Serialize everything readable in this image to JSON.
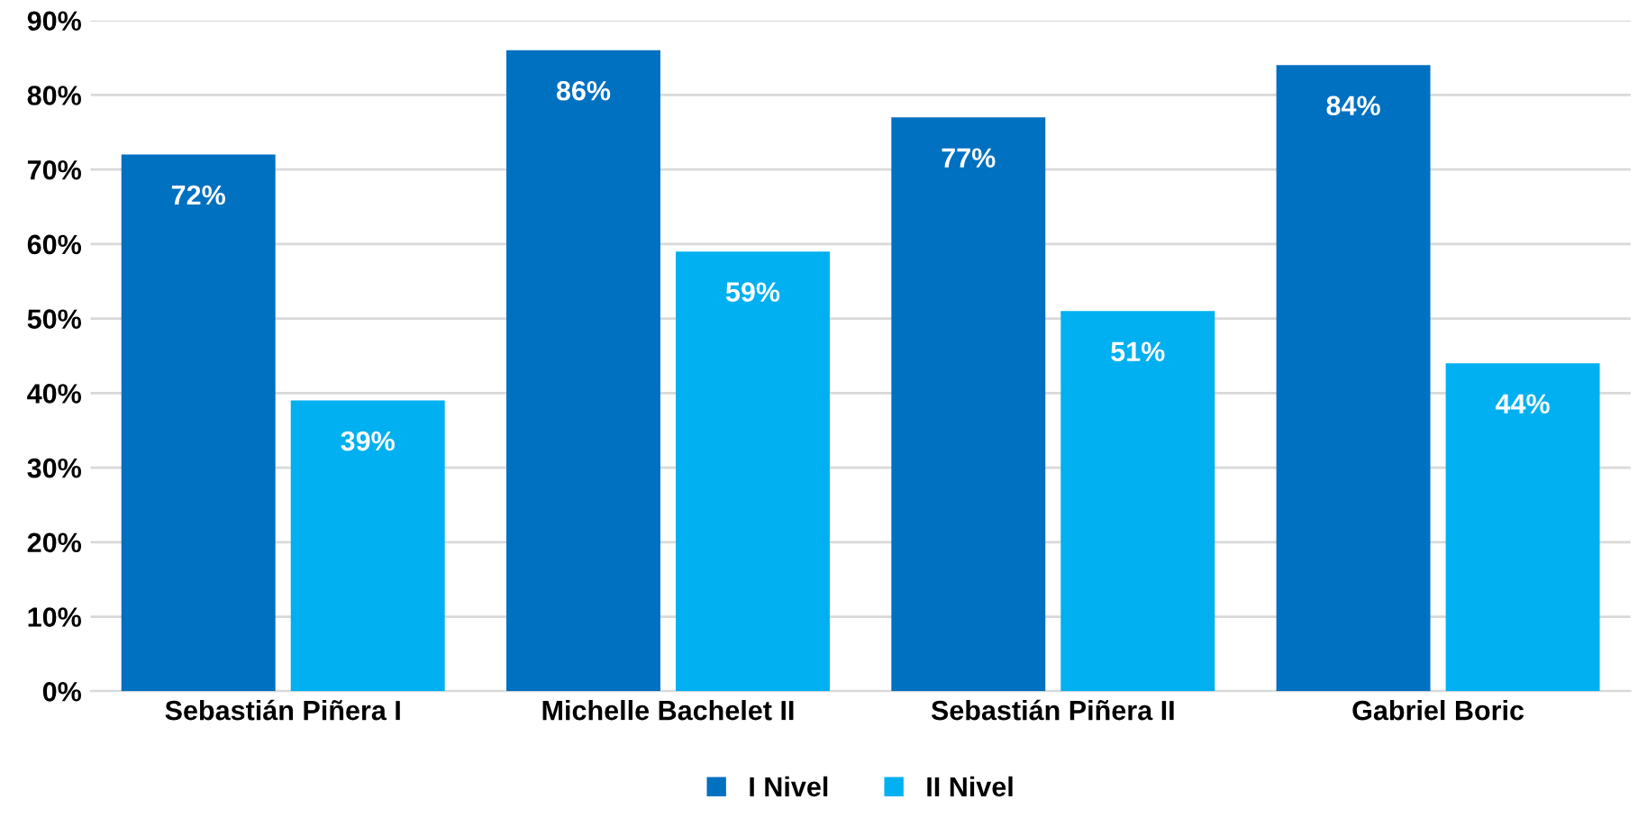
{
  "chart_data": {
    "type": "bar",
    "categories": [
      "Sebastián Piñera I",
      "Michelle Bachelet II",
      "Sebastián Piñera II",
      "Gabriel Boric"
    ],
    "series": [
      {
        "name": "I Nivel",
        "color": "#0070c0",
        "values": [
          72,
          86,
          77,
          84
        ],
        "value_labels": [
          "72%",
          "86%",
          "77%",
          "84%"
        ]
      },
      {
        "name": "II Nivel",
        "color": "#00b0f0",
        "values": [
          39,
          59,
          51,
          44
        ],
        "value_labels": [
          "39%",
          "59%",
          "51%",
          "44%"
        ]
      }
    ],
    "ylim": [
      0,
      90
    ],
    "yticks": [
      {
        "value": 0,
        "label": "0%"
      },
      {
        "value": 10,
        "label": "10%"
      },
      {
        "value": 20,
        "label": "20%"
      },
      {
        "value": 30,
        "label": "30%"
      },
      {
        "value": 40,
        "label": "40%"
      },
      {
        "value": 50,
        "label": "50%"
      },
      {
        "value": 60,
        "label": "60%"
      },
      {
        "value": 70,
        "label": "70%"
      },
      {
        "value": 80,
        "label": "80%"
      },
      {
        "value": 90,
        "label": "90%"
      }
    ],
    "grid": "y",
    "legend": "bottom"
  }
}
